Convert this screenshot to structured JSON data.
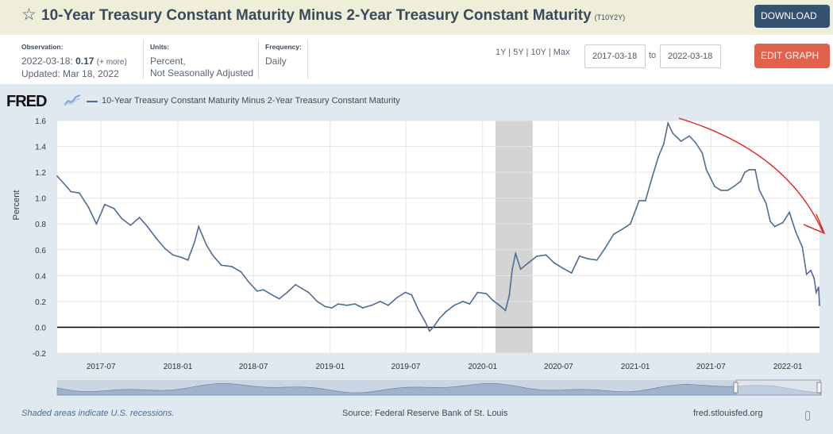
{
  "header": {
    "title": "10-Year Treasury Constant Maturity Minus 2-Year Treasury Constant Maturity",
    "series_id": "(T10Y2Y)",
    "download_label": "DOWNLOAD",
    "star_icon": "star-icon"
  },
  "meta": {
    "observation_label": "Observation:",
    "observation_date": "2022-03-18:",
    "observation_value": "0.17",
    "observation_more": "(+ more)",
    "updated": "Updated: Mar 18, 2022",
    "units_label": "Units:",
    "units_line1": "Percent,",
    "units_line2": "Not Seasonally Adjusted",
    "frequency_label": "Frequency:",
    "frequency_value": "Daily"
  },
  "controls": {
    "ranges": "1Y | 5Y | 10Y | Max",
    "start_date": "2017-03-18",
    "to_label": "to",
    "end_date": "2022-03-18",
    "edit_label": "EDIT GRAPH"
  },
  "logo": "FRED",
  "legend": "10-Year Treasury Constant Maturity Minus 2-Year Treasury Constant Maturity",
  "footer": {
    "recession_note": "Shaded areas indicate U.S. recessions.",
    "source": "Source: Federal Reserve Bank of St. Louis",
    "site": "fred.stlouisfed.org"
  },
  "colors": {
    "series": "#4e6c94",
    "recession": "#d4d4d4",
    "annotation": "#e02020",
    "header_bg": "#eeeed9"
  },
  "chart_data": {
    "type": "line",
    "ylabel": "Percent",
    "ylim": [
      -0.2,
      1.6
    ],
    "yticks": [
      "1.6",
      "1.4",
      "1.2",
      "1.0",
      "0.8",
      "0.6",
      "0.4",
      "0.2",
      "0.0",
      "-0.2"
    ],
    "xlim": [
      "2017-03-18",
      "2022-03-18"
    ],
    "xticks": [
      "2017-07",
      "2018-01",
      "2018-07",
      "2019-01",
      "2019-07",
      "2020-01",
      "2020-07",
      "2021-01",
      "2021-07",
      "2022-01"
    ],
    "recession": [
      "2020-02-01",
      "2020-04-30"
    ],
    "zero_line": 0,
    "series": [
      {
        "name": "10-Year Treasury Constant Maturity Minus 2-Year Treasury Constant Maturity",
        "points": [
          [
            "2017-03-18",
            1.17
          ],
          [
            "2017-04-01",
            1.12
          ],
          [
            "2017-04-20",
            1.05
          ],
          [
            "2017-05-10",
            1.04
          ],
          [
            "2017-06-01",
            0.93
          ],
          [
            "2017-06-20",
            0.8
          ],
          [
            "2017-07-10",
            0.95
          ],
          [
            "2017-08-01",
            0.92
          ],
          [
            "2017-08-20",
            0.84
          ],
          [
            "2017-09-10",
            0.79
          ],
          [
            "2017-10-01",
            0.85
          ],
          [
            "2017-10-20",
            0.78
          ],
          [
            "2017-11-10",
            0.69
          ],
          [
            "2017-12-01",
            0.61
          ],
          [
            "2017-12-20",
            0.56
          ],
          [
            "2018-01-10",
            0.54
          ],
          [
            "2018-01-25",
            0.52
          ],
          [
            "2018-02-10",
            0.66
          ],
          [
            "2018-02-20",
            0.78
          ],
          [
            "2018-03-10",
            0.64
          ],
          [
            "2018-03-25",
            0.56
          ],
          [
            "2018-04-15",
            0.48
          ],
          [
            "2018-05-10",
            0.47
          ],
          [
            "2018-06-01",
            0.43
          ],
          [
            "2018-06-20",
            0.35
          ],
          [
            "2018-07-10",
            0.28
          ],
          [
            "2018-07-25",
            0.29
          ],
          [
            "2018-08-15",
            0.25
          ],
          [
            "2018-09-01",
            0.22
          ],
          [
            "2018-09-20",
            0.27
          ],
          [
            "2018-10-10",
            0.33
          ],
          [
            "2018-10-25",
            0.3
          ],
          [
            "2018-11-10",
            0.27
          ],
          [
            "2018-12-01",
            0.2
          ],
          [
            "2018-12-20",
            0.16
          ],
          [
            "2019-01-05",
            0.15
          ],
          [
            "2019-01-20",
            0.18
          ],
          [
            "2019-02-10",
            0.17
          ],
          [
            "2019-03-01",
            0.18
          ],
          [
            "2019-03-20",
            0.15
          ],
          [
            "2019-04-10",
            0.17
          ],
          [
            "2019-05-01",
            0.2
          ],
          [
            "2019-05-20",
            0.17
          ],
          [
            "2019-06-10",
            0.23
          ],
          [
            "2019-06-30",
            0.27
          ],
          [
            "2019-07-15",
            0.25
          ],
          [
            "2019-08-01",
            0.13
          ],
          [
            "2019-08-15",
            0.05
          ],
          [
            "2019-08-27",
            -0.03
          ],
          [
            "2019-09-05",
            0.0
          ],
          [
            "2019-09-20",
            0.07
          ],
          [
            "2019-10-05",
            0.12
          ],
          [
            "2019-10-25",
            0.17
          ],
          [
            "2019-11-15",
            0.2
          ],
          [
            "2019-12-01",
            0.18
          ],
          [
            "2019-12-20",
            0.27
          ],
          [
            "2020-01-10",
            0.26
          ],
          [
            "2020-01-25",
            0.21
          ],
          [
            "2020-02-10",
            0.17
          ],
          [
            "2020-02-25",
            0.13
          ],
          [
            "2020-03-05",
            0.25
          ],
          [
            "2020-03-12",
            0.45
          ],
          [
            "2020-03-20",
            0.57
          ],
          [
            "2020-04-01",
            0.45
          ],
          [
            "2020-04-20",
            0.5
          ],
          [
            "2020-05-10",
            0.55
          ],
          [
            "2020-06-01",
            0.56
          ],
          [
            "2020-06-20",
            0.5
          ],
          [
            "2020-07-10",
            0.46
          ],
          [
            "2020-08-01",
            0.42
          ],
          [
            "2020-08-20",
            0.55
          ],
          [
            "2020-09-10",
            0.53
          ],
          [
            "2020-10-01",
            0.52
          ],
          [
            "2020-10-20",
            0.61
          ],
          [
            "2020-11-10",
            0.72
          ],
          [
            "2020-12-01",
            0.76
          ],
          [
            "2020-12-20",
            0.8
          ],
          [
            "2021-01-10",
            0.98
          ],
          [
            "2021-01-25",
            0.98
          ],
          [
            "2021-02-10",
            1.16
          ],
          [
            "2021-02-25",
            1.32
          ],
          [
            "2021-03-10",
            1.42
          ],
          [
            "2021-03-20",
            1.58
          ],
          [
            "2021-04-01",
            1.5
          ],
          [
            "2021-04-20",
            1.44
          ],
          [
            "2021-05-10",
            1.48
          ],
          [
            "2021-05-25",
            1.43
          ],
          [
            "2021-06-10",
            1.35
          ],
          [
            "2021-06-20",
            1.22
          ],
          [
            "2021-07-10",
            1.09
          ],
          [
            "2021-07-25",
            1.06
          ],
          [
            "2021-08-10",
            1.06
          ],
          [
            "2021-08-25",
            1.09
          ],
          [
            "2021-09-10",
            1.13
          ],
          [
            "2021-09-20",
            1.2
          ],
          [
            "2021-10-01",
            1.22
          ],
          [
            "2021-10-15",
            1.22
          ],
          [
            "2021-10-25",
            1.06
          ],
          [
            "2021-11-10",
            0.96
          ],
          [
            "2021-11-20",
            0.82
          ],
          [
            "2021-12-01",
            0.78
          ],
          [
            "2021-12-20",
            0.81
          ],
          [
            "2022-01-05",
            0.89
          ],
          [
            "2022-01-20",
            0.74
          ],
          [
            "2022-02-05",
            0.62
          ],
          [
            "2022-02-15",
            0.41
          ],
          [
            "2022-02-25",
            0.44
          ],
          [
            "2022-03-05",
            0.38
          ],
          [
            "2022-03-10",
            0.27
          ],
          [
            "2022-03-16",
            0.31
          ],
          [
            "2022-03-18",
            0.17
          ]
        ]
      }
    ]
  }
}
